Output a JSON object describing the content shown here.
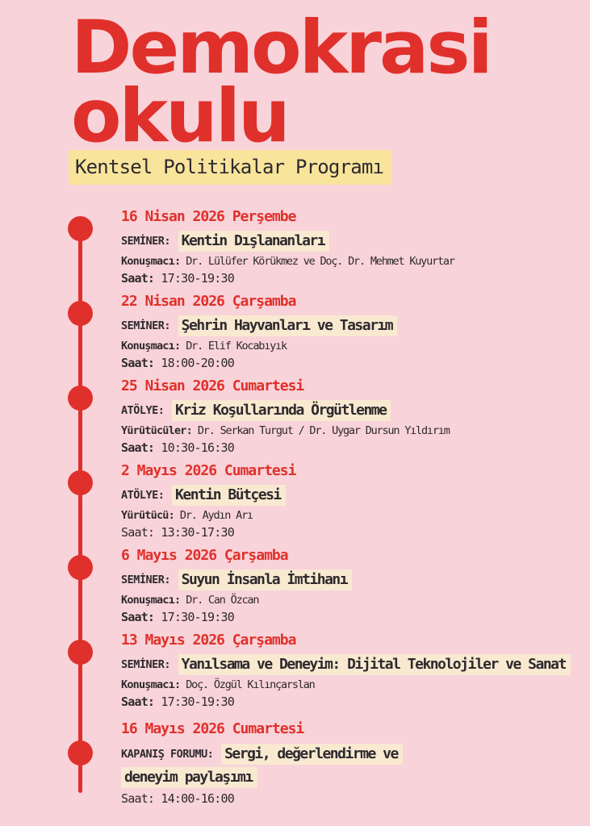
{
  "colors": {
    "background_pink": "#f8d3d9",
    "accent_red": "#e0302b",
    "text_dark": "#2e2a2e",
    "subtitle_highlight_yellow": "#f9e49c",
    "title_highlight_cream": "#f8e9d0"
  },
  "header": {
    "title_line1": "Demokrasi",
    "title_line2": "okulu",
    "subtitle": "Kentsel Politikalar Programı"
  },
  "timeline": {
    "entries": [
      {
        "date": "16 Nisan 2026 Perşembe",
        "type_label": "SEMİNER:",
        "title": "Kentin Dışlananları",
        "people_label": "Konuşmacı:",
        "people": "Dr. Lülüfer Körükmez ve Doç. Dr. Mehmet Kuyurtar",
        "time_label": "Saat:",
        "time": "17:30-19:30"
      },
      {
        "date": "22 Nisan 2026 Çarşamba",
        "type_label": "SEMİNER:",
        "title": "Şehrin Hayvanları ve Tasarım",
        "people_label": "Konuşmacı:",
        "people": "Dr. Elif Kocabıyık",
        "time_label": "Saat:",
        "time": "18:00-20:00"
      },
      {
        "date": "25 Nisan 2026 Cumartesi",
        "type_label": "ATÖLYE:",
        "title": "Kriz Koşullarında Örgütlenme",
        "people_label": "Yürütücüler:",
        "people": "Dr. Serkan Turgut / Dr. Uygar Dursun Yıldırım",
        "time_label": "Saat:",
        "time": "10:30-16:30"
      },
      {
        "date": "2 Mayıs 2026 Cumartesi",
        "type_label": "ATÖLYE:",
        "title": "Kentin Bütçesi",
        "people_label": "Yürütücü:",
        "people": "Dr. Aydın Arı",
        "time_label": "Saat:",
        "time": "13:30-17:30"
      },
      {
        "date": "6 Mayıs 2026 Çarşamba",
        "type_label": "SEMİNER:",
        "title": "Suyun İnsanla İmtihanı",
        "people_label": "Konuşmacı:",
        "people": "Dr. Can Özcan",
        "time_label": "Saat:",
        "time": "17:30-19:30"
      },
      {
        "date": "13 Mayıs 2026 Çarşamba",
        "type_label": "SEMİNER:",
        "title": "Yanılsama ve Deneyim: Dijital Teknolojiler ve Sanat",
        "people_label": "Konuşmacı:",
        "people": "Doç. Özgül Kılınçarslan",
        "time_label": "Saat:",
        "time": "17:30-19:30"
      },
      {
        "date": "16 Mayıs 2026 Cumartesi",
        "type_label": "KAPANIŞ FORUMU:",
        "title_line1": "Sergi, değerlendirme ve",
        "title_line2": "deneyim paylaşımı",
        "time_label": "Saat:",
        "time": "14:00-16:00"
      }
    ]
  }
}
